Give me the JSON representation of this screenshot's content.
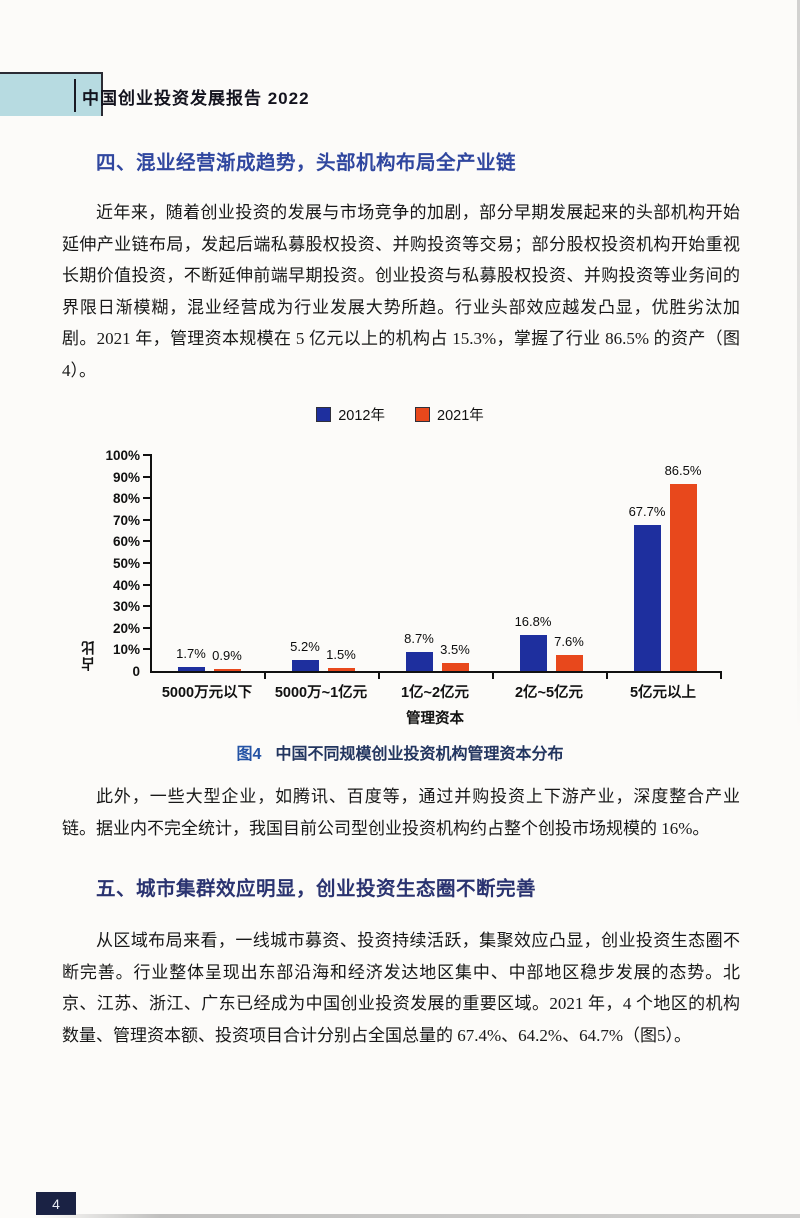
{
  "header": {
    "report_title": "中国创业投资发展报告 2022"
  },
  "section4": {
    "heading": "四、混业经营渐成趋势，头部机构布局全产业链",
    "para1": "近年来，随着创业投资的发展与市场竞争的加剧，部分早期发展起来的头部机构开始延伸产业链布局，发起后端私募股权投资、并购投资等交易；部分股权投资机构开始重视长期价值投资，不断延伸前端早期投资。创业投资与私募股权投资、并购投资等业务间的界限日渐模糊，混业经营成为行业发展大势所趋。行业头部效应越发凸显，优胜劣汰加剧。2021 年，管理资本规模在 5 亿元以上的机构占 15.3%，掌握了行业 86.5% 的资产（图4）。",
    "para2": "此外，一些大型企业，如腾讯、百度等，通过并购投资上下游产业，深度整合产业链。据业内不完全统计，我国目前公司型创业投资机构约占整个创投市场规模的 16%。"
  },
  "figure4": {
    "caption_label": "图4",
    "caption_text": "中国不同规模创业投资机构管理资本分布"
  },
  "chart_data": {
    "type": "bar",
    "title": "图4 中国不同规模创业投资机构管理资本分布",
    "categories": [
      "5000万元以下",
      "5000万~1亿元",
      "1亿~2亿元",
      "2亿~5亿元",
      "5亿元以上"
    ],
    "series": [
      {
        "name": "2012年",
        "color": "#1e2f9e",
        "values": [
          1.7,
          5.2,
          8.7,
          16.8,
          67.7
        ]
      },
      {
        "name": "2021年",
        "color": "#e8481c",
        "values": [
          0.9,
          1.5,
          3.5,
          7.6,
          86.5
        ]
      }
    ],
    "xlabel": "管理资本",
    "ylabel": "占比",
    "ylim": [
      0,
      100
    ],
    "ytick_step": 10,
    "value_suffix": "%",
    "zero_tick_label": "0",
    "legend_position": "top",
    "grid": "off"
  },
  "section5": {
    "heading": "五、城市集群效应明显，创业投资生态圈不断完善",
    "para1": "从区域布局来看，一线城市募资、投资持续活跃，集聚效应凸显，创业投资生态圈不断完善。行业整体呈现出东部沿海和经济发达地区集中、中部地区稳步发展的态势。北京、江苏、浙江、广东已经成为中国创业投资发展的重要区域。2021 年，4 个地区的机构数量、管理资本额、投资项目合计分别占全国总量的 67.4%、64.2%、64.7%（图5）。"
  },
  "footer": {
    "page_number": "4"
  },
  "colors": {
    "header_band": "#b7dbe1",
    "heading_s4": "#30479f",
    "heading_s5": "#2a3370",
    "caption_label": "#2453a5",
    "caption_text": "#22355f",
    "bar_2012": "#1e2f9e",
    "bar_2021": "#e8481c",
    "footer_box": "#1a2244"
  }
}
